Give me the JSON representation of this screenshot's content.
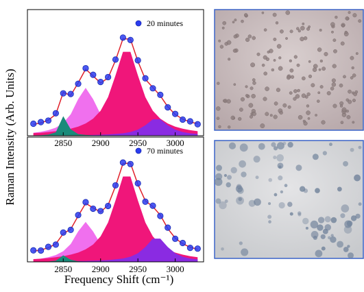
{
  "chart_data": [
    {
      "type": "line",
      "ylabel": "Raman Intensity (Arb. Units)",
      "x": [
        2810,
        2820,
        2830,
        2840,
        2850,
        2860,
        2870,
        2880,
        2890,
        2900,
        2910,
        2920,
        2930,
        2940,
        2950,
        2960,
        2970,
        2980,
        2990,
        3000,
        3010,
        3020,
        3030
      ],
      "xlim": [
        2802,
        3038
      ],
      "ylim": [
        0,
        100
      ],
      "xticks": [
        2850,
        2900,
        2950,
        3000
      ],
      "legend": "upper right",
      "series": [
        {
          "color": "#f070ee",
          "style": "area",
          "values": [
            2.4,
            3.1,
            4.4,
            6.4,
            10.1,
            17.0,
            29.0,
            38,
            29.0,
            17.0,
            10.1,
            6.4,
            4.4,
            3.1,
            2.4,
            1.8,
            1.5,
            1.2,
            1.0,
            0.8,
            0.7,
            0.6,
            0.5
          ]
        },
        {
          "color": "#f0167a",
          "style": "area",
          "values": [
            2.1,
            2.4,
            2.9,
            3.6,
            4.4,
            5.6,
            7.2,
            9.7,
            13.5,
            19.8,
            30.6,
            47.8,
            66.5,
            66.5,
            47.8,
            30.6,
            19.8,
            13.5,
            9.7,
            7.2,
            5.6,
            4.4,
            3.6
          ]
        },
        {
          "color": "#8a2be2",
          "style": "area",
          "values": [
            0.2,
            0.2,
            0.2,
            0.2,
            0.3,
            0.3,
            0.4,
            0.5,
            0.6,
            0.8,
            1.0,
            1.4,
            1.9,
            2.9,
            4.8,
            8.3,
            13.0,
            13.0,
            8.3,
            4.8,
            2.9,
            1.9,
            1.4
          ]
        },
        {
          "color": "#1a8a7a",
          "style": "area",
          "values": [
            0.3,
            0.4,
            0.9,
            2.7,
            15.5,
            5.1,
            1.3,
            0.6,
            0.3,
            0.2,
            0.1,
            0.1,
            0.1,
            0.1,
            0,
            0,
            0,
            0,
            0,
            0,
            0,
            0,
            0
          ]
        },
        {
          "color": "#e0202a",
          "style": "line",
          "values": [
            9.0,
            10.1,
            12.4,
            16.9,
            34.3,
            32.0,
            41.9,
            52.8,
            47.4,
            41.8,
            45.8,
            59.7,
            76.9,
            76.6,
            59.0,
            44.7,
            38.3,
            31.7,
            23.0,
            16.8,
            13.2,
            10.9,
            9.5
          ]
        },
        {
          "name": "20 minutes",
          "color": "#2a3cf0",
          "style": "markers",
          "values": [
            9.5,
            10.8,
            12.0,
            17.8,
            33.6,
            33.1,
            41.2,
            53.5,
            48.3,
            42.6,
            46.5,
            60.4,
            77.8,
            75.9,
            59.8,
            45.5,
            37.6,
            32.4,
            22.5,
            17.3,
            12.8,
            11.4,
            9.1
          ]
        }
      ]
    },
    {
      "type": "line",
      "xlabel": "Frequency Shift (cm⁻¹)",
      "x": [
        2810,
        2820,
        2830,
        2840,
        2850,
        2860,
        2870,
        2880,
        2890,
        2900,
        2910,
        2920,
        2930,
        2940,
        2950,
        2960,
        2970,
        2980,
        2990,
        3000,
        3010,
        3020,
        3030
      ],
      "xlim": [
        2802,
        3038
      ],
      "ylim": [
        0,
        100
      ],
      "xticks": [
        2850,
        2900,
        2950,
        3000
      ],
      "legend": "upper right",
      "series": [
        {
          "color": "#f070ee",
          "style": "area",
          "values": [
            2.0,
            2.6,
            3.7,
            5.4,
            8.5,
            14.3,
            24.4,
            32,
            24.4,
            14.3,
            8.5,
            5.4,
            3.7,
            2.6,
            2.0,
            1.5,
            1.3,
            1.0,
            0.8,
            0.7,
            0.6,
            0.5,
            0.4
          ]
        },
        {
          "color": "#f0167a",
          "style": "area",
          "values": [
            2.2,
            2.5,
            3.0,
            3.7,
            4.5,
            5.8,
            7.4,
            10.0,
            13.9,
            20.4,
            31.5,
            49.2,
            68.4,
            68.4,
            49.2,
            31.5,
            20.4,
            13.9,
            10.0,
            7.4,
            5.8,
            4.5,
            3.7
          ]
        },
        {
          "color": "#8a2be2",
          "style": "area",
          "values": [
            0.3,
            0.3,
            0.3,
            0.3,
            0.4,
            0.4,
            0.6,
            0.7,
            0.9,
            1.1,
            1.4,
            2.0,
            2.7,
            4.1,
            6.9,
            11.9,
            18.6,
            18.6,
            11.9,
            6.9,
            4.1,
            2.7,
            2.0
          ]
        },
        {
          "color": "#1a8a7a",
          "style": "area",
          "values": [
            0.1,
            0.1,
            0.3,
            0.9,
            5.2,
            1.7,
            0.4,
            0.2,
            0.1,
            0.1,
            0,
            0,
            0,
            0,
            0,
            0,
            0,
            0,
            0,
            0,
            0,
            0,
            0
          ]
        },
        {
          "color": "#e0202a",
          "style": "line",
          "values": [
            8.6,
            9.5,
            11.3,
            14.3,
            22.6,
            26.2,
            36.8,
            46.9,
            43.3,
            39.9,
            45.4,
            60.6,
            78.8,
            79.1,
            62.1,
            48.9,
            44.3,
            37.5,
            26.7,
            19.0,
            14.5,
            11.7,
            10.1
          ]
        },
        {
          "name": "70 minutes",
          "color": "#2a3cf0",
          "style": "markers",
          "values": [
            9.2,
            9.1,
            12.0,
            13.8,
            23.5,
            25.6,
            37.5,
            47.8,
            42.6,
            40.7,
            44.8,
            61.3,
            79.6,
            78.4,
            62.9,
            48.2,
            45.0,
            36.8,
            27.4,
            18.5,
            15.1,
            11.2,
            10.6
          ]
        }
      ]
    }
  ]
}
